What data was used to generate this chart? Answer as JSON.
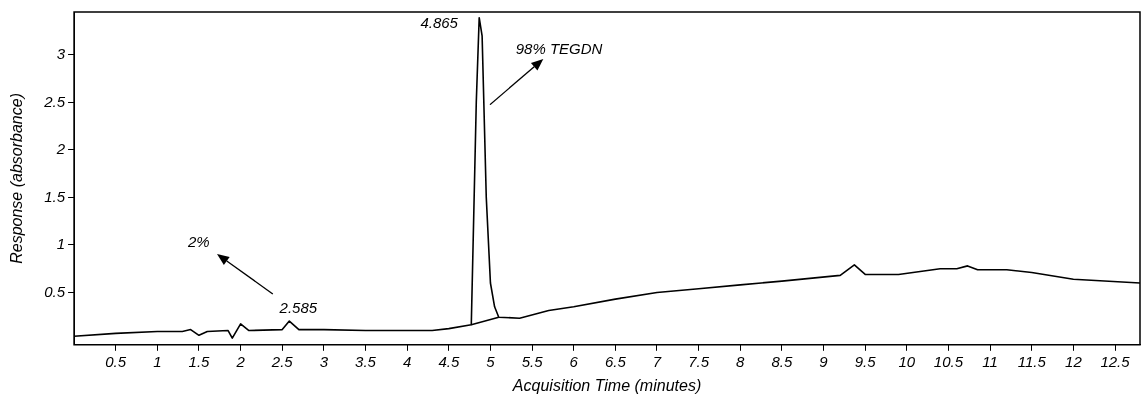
{
  "chart_data": {
    "type": "line",
    "xlabel": "Acquisition Time (minutes)",
    "ylabel": "Response (absorbance)",
    "xlim": [
      0,
      12.8
    ],
    "xticks": [
      0.5,
      1,
      1.5,
      2,
      2.5,
      3,
      3.5,
      4,
      4.5,
      5,
      5.5,
      6,
      6.5,
      7,
      7.5,
      8,
      8.5,
      9,
      9.5,
      10,
      10.5,
      11,
      11.5,
      12,
      12.5
    ],
    "ylim": [
      -0.05,
      3.45
    ],
    "yticks": [
      0.5,
      1,
      1.5,
      2,
      2.5,
      3
    ],
    "grid": false,
    "legend": false,
    "marker": "none",
    "line_style": "solid",
    "series": [
      {
        "color": "#000000",
        "x": [
          0,
          0.5,
          1,
          1.3,
          1.4,
          1.5,
          1.6,
          1.85,
          1.9,
          2.0,
          2.1,
          2.5,
          2.585,
          2.7,
          3,
          3.5,
          4,
          4.3,
          4.5,
          4.77,
          4.83,
          4.865,
          4.9,
          4.95,
          5.0,
          5.05,
          5.1,
          5.35,
          5.7,
          6,
          6.5,
          7,
          7.5,
          8,
          8.5,
          9.2,
          9.37,
          9.5,
          9.9,
          10.4,
          10.6,
          10.73,
          10.85,
          11.2,
          11.5,
          12,
          12.8
        ],
        "values": [
          0.04,
          0.07,
          0.09,
          0.09,
          0.11,
          0.05,
          0.09,
          0.1,
          0.02,
          0.17,
          0.1,
          0.11,
          0.2,
          0.11,
          0.11,
          0.1,
          0.1,
          0.1,
          0.12,
          0.16,
          2.5,
          3.39,
          3.2,
          1.5,
          0.6,
          0.35,
          0.24,
          0.23,
          0.31,
          0.35,
          0.43,
          0.5,
          0.54,
          0.58,
          0.62,
          0.68,
          0.79,
          0.69,
          0.69,
          0.75,
          0.75,
          0.78,
          0.74,
          0.74,
          0.71,
          0.64,
          0.6
        ]
      },
      {
        "color": "#000000",
        "x": [
          4.77,
          5.1
        ],
        "values": [
          0.16,
          0.24
        ]
      }
    ],
    "annotations": [
      {
        "text": "4.865",
        "x": 4.865,
        "y": 3.39
      },
      "98% TEGDN",
      "2%",
      {
        "text": "2.585",
        "x": 2.585,
        "y": 0.2
      }
    ]
  }
}
